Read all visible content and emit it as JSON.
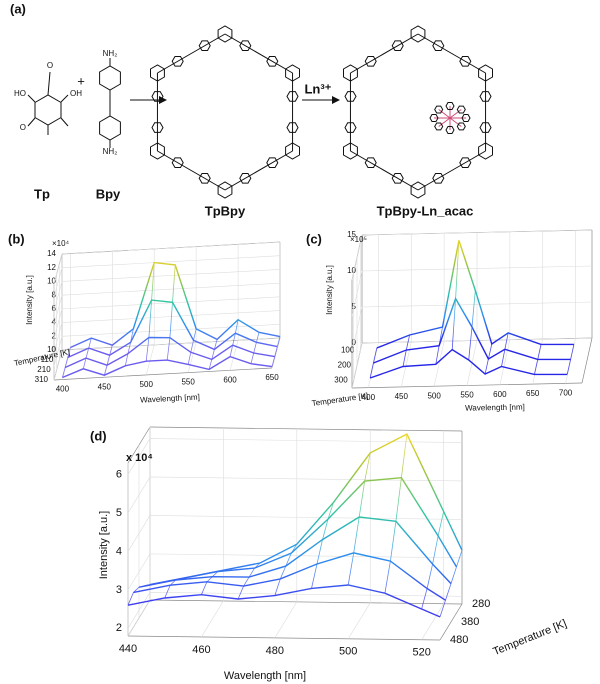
{
  "scheme": {
    "panel_label": "(a)",
    "tp": "Tp",
    "bpy": "Bpy",
    "plus": "+",
    "tpbpy": "TpBpy",
    "reagent": "Ln³⁺",
    "product": "TpBpy-Ln_acac",
    "atoms": [
      "O",
      "OH",
      "HO",
      "O",
      "NH₂",
      "NH₂"
    ]
  },
  "chart_data": [
    {
      "type": "surface3d",
      "panel_label": "(b)",
      "multiplier": "×10⁴",
      "xlabel": "Wavelength [nm]",
      "ylabel": "Intensity [a.u.]",
      "zlabel": "Temperature [K]",
      "x": [
        400,
        425,
        450,
        475,
        500,
        525,
        550,
        575,
        600,
        625,
        650
      ],
      "xlim": [
        390,
        650
      ],
      "xticks": [
        400,
        450,
        500,
        550,
        600,
        650
      ],
      "ylim": [
        0,
        14
      ],
      "yticks": [
        0,
        2,
        4,
        6,
        8,
        10,
        12,
        14
      ],
      "zlim": [
        10,
        310
      ],
      "zticks": [
        10,
        110,
        210,
        310
      ],
      "series": [
        {
          "z": 10,
          "values": [
            0.3,
            1.5,
            0.3,
            2.5,
            12,
            11.5,
            2,
            0.3,
            3,
            1,
            0.2
          ]
        },
        {
          "z": 110,
          "values": [
            0.3,
            1.5,
            0.3,
            2,
            8,
            7.5,
            1.8,
            0.3,
            2.5,
            1,
            0.2
          ]
        },
        {
          "z": 210,
          "values": [
            0.3,
            1.5,
            0.3,
            1.8,
            4,
            3.8,
            1.5,
            0.3,
            2.2,
            0.9,
            0.2
          ]
        },
        {
          "z": 310,
          "values": [
            0.3,
            1.4,
            0.3,
            1.5,
            2,
            2,
            1.2,
            0.3,
            2,
            0.8,
            0.2
          ]
        }
      ],
      "colormap": [
        "#6a5cf0",
        "#2d8ef0",
        "#2fc6a3",
        "#a5c43a",
        "#f9d924"
      ],
      "grid": true
    },
    {
      "type": "surface3d",
      "panel_label": "(c)",
      "multiplier": "×10⁵",
      "xlabel": "Wavelength [nm]",
      "ylabel": "Intensity [a.u.]",
      "zlabel": "Temperature [K]",
      "x": [
        400,
        450,
        500,
        525,
        550,
        575,
        600,
        650,
        700
      ],
      "xlim": [
        375,
        725
      ],
      "xticks": [
        400,
        450,
        500,
        550,
        600,
        650,
        700
      ],
      "ylim": [
        0,
        15
      ],
      "yticks": [
        0,
        5,
        10,
        15
      ],
      "zlim": [
        50,
        350
      ],
      "zticks": [
        100,
        200,
        300
      ],
      "series": [
        {
          "z": 100,
          "values": [
            0.3,
            2,
            3,
            15,
            8,
            0.5,
            2,
            0.3,
            0.2
          ]
        },
        {
          "z": 200,
          "values": [
            0.3,
            2,
            2.5,
            9,
            5,
            0.5,
            1.8,
            0.3,
            0.2
          ]
        },
        {
          "z": 300,
          "values": [
            0.3,
            1.8,
            2,
            4,
            2.5,
            0.5,
            1.5,
            0.3,
            0.2
          ]
        }
      ],
      "colormap": [
        "#2626e8",
        "#2d8ef0",
        "#2fc6a3",
        "#a5c43a",
        "#f9d924"
      ],
      "grid": true
    },
    {
      "type": "surface3d",
      "panel_label": "(d)",
      "multiplier": "x 10⁴",
      "xlabel": "Wavelength [nm]",
      "ylabel": "Intensity [a.u.]",
      "zlabel": "Temperature [K]",
      "x": [
        440,
        450,
        460,
        470,
        480,
        490,
        500,
        510,
        520,
        525
      ],
      "xlim": [
        440,
        525
      ],
      "xticks": [
        440,
        460,
        480,
        500,
        520
      ],
      "ylim": [
        1.8,
        6.3
      ],
      "yticks": [
        2,
        3,
        4,
        5,
        6
      ],
      "zlim": [
        280,
        480
      ],
      "zticks": [
        280,
        380,
        480
      ],
      "series": [
        {
          "z": 280,
          "values": [
            2.2,
            2.4,
            2.6,
            2.8,
            3.3,
            4.4,
            5.7,
            6.2,
            4.2,
            3.2
          ]
        },
        {
          "z": 330,
          "values": [
            2.4,
            2.6,
            2.8,
            2.9,
            3.3,
            4.2,
            5.2,
            5.3,
            3.8,
            3.0
          ]
        },
        {
          "z": 380,
          "values": [
            2.6,
            2.8,
            2.9,
            2.9,
            3.2,
            3.9,
            4.5,
            4.4,
            3.3,
            2.8
          ]
        },
        {
          "z": 430,
          "values": [
            2.7,
            2.9,
            3.0,
            2.9,
            3.1,
            3.5,
            3.8,
            3.6,
            2.9,
            2.6
          ]
        },
        {
          "z": 480,
          "values": [
            2.6,
            2.8,
            2.9,
            2.8,
            2.9,
            3.1,
            3.2,
            3.0,
            2.6,
            2.4
          ]
        }
      ],
      "colormap": [
        "#3e3ef0",
        "#2d8ef0",
        "#2fc6a3",
        "#a5c43a",
        "#f9d924"
      ],
      "grid": true
    }
  ]
}
